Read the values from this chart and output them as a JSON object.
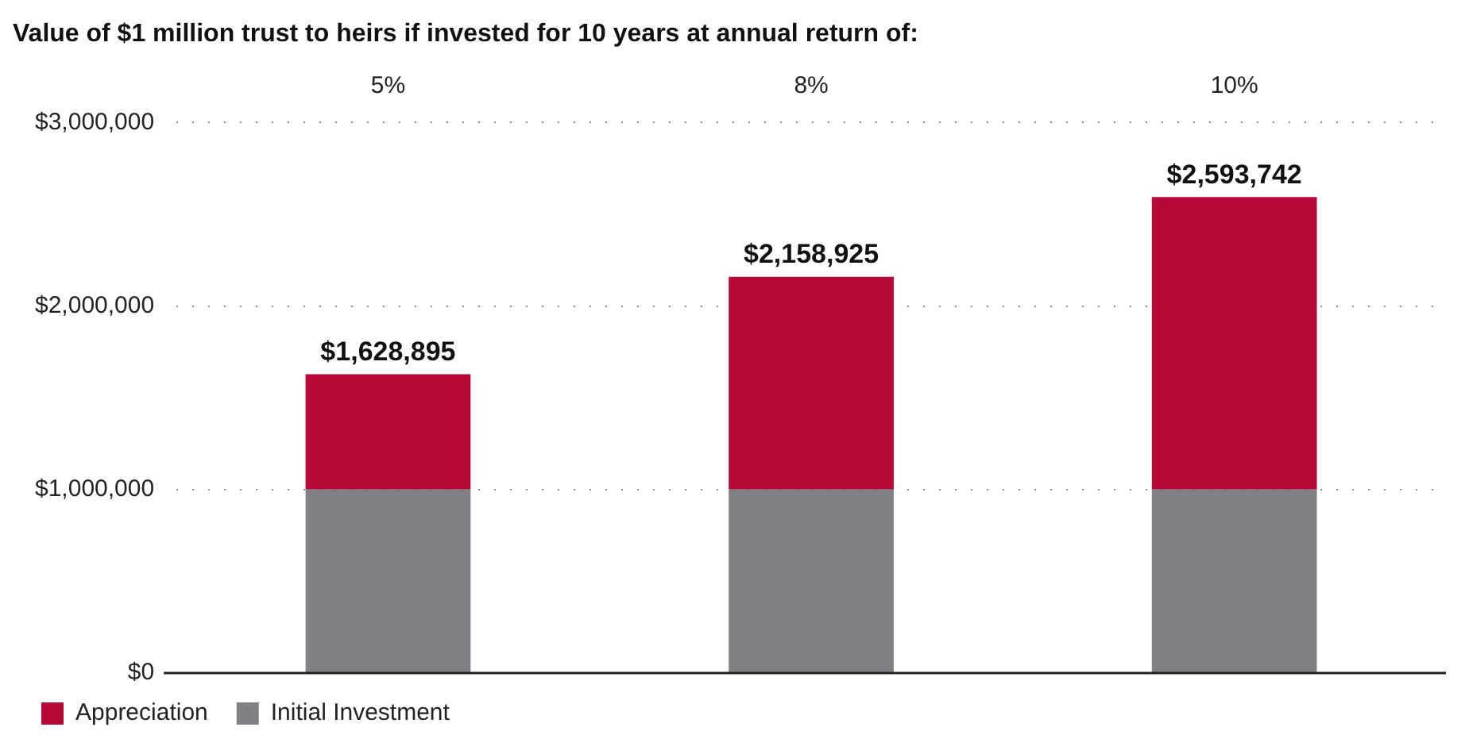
{
  "chart_data": {
    "type": "bar",
    "title": "Value of $1 million trust to heirs if invested for 10 years at annual return of:",
    "categories": [
      "5%",
      "8%",
      "10%"
    ],
    "stacked": true,
    "series": [
      {
        "name": "Initial Investment",
        "color": "#808184",
        "values": [
          1000000,
          1000000,
          1000000
        ]
      },
      {
        "name": "Appreciation",
        "color": "#b80837",
        "values": [
          628895,
          1158925,
          1593742
        ]
      }
    ],
    "totals": [
      "$1,628,895",
      "$2,158,925",
      "$2,593,742"
    ],
    "ylim": [
      0,
      3000000
    ],
    "yticks": [
      {
        "value": 0,
        "label": "$0"
      },
      {
        "value": 1000000,
        "label": "$1,000,000"
      },
      {
        "value": 2000000,
        "label": "$2,000,000"
      },
      {
        "value": 3000000,
        "label": "$3,000,000"
      }
    ],
    "grid": "y",
    "legend": "bottom left"
  }
}
